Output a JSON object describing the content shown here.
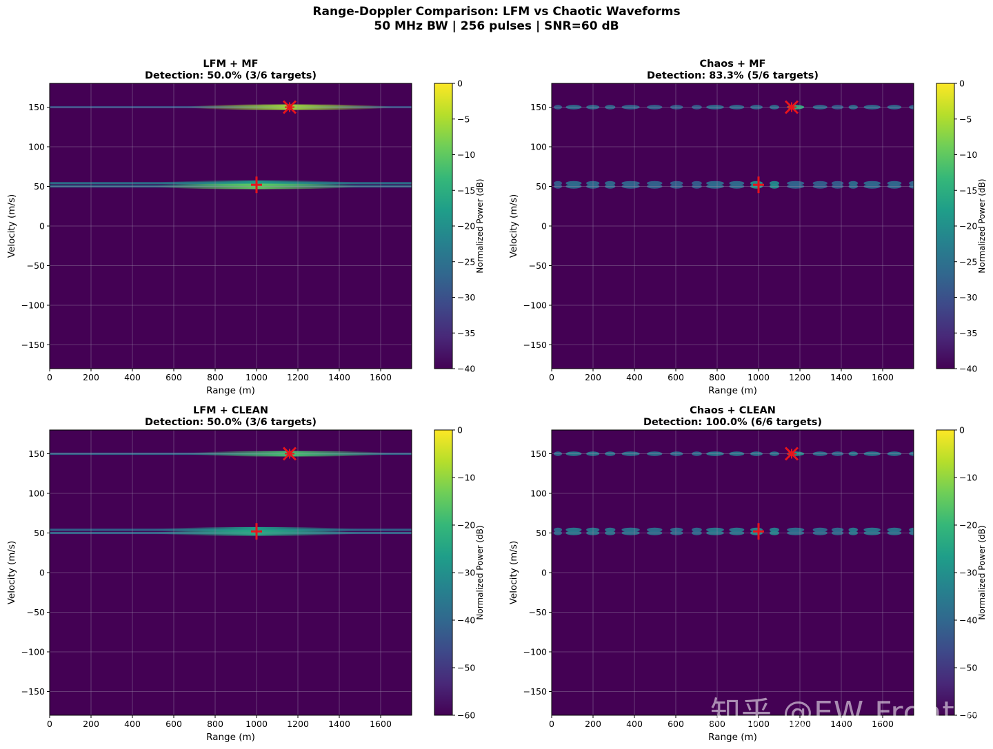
{
  "figure": {
    "title_line1": "Range-Doppler Comparison: LFM vs Chaotic Waveforms",
    "title_line2": "50 MHz BW | 256 pulses | SNR=60 dB"
  },
  "watermark": "知乎 @EW Frontier",
  "colors": {
    "viridis": [
      "#440154",
      "#482878",
      "#3e4989",
      "#31688e",
      "#26828e",
      "#1f9e89",
      "#35b779",
      "#6ece58",
      "#b5de2b",
      "#fde725"
    ],
    "background": "#440154",
    "grid": "#9a8aa8",
    "marker": "#e8141c"
  },
  "chart_data": [
    {
      "type": "heatmap",
      "title": "LFM + MF",
      "subtitle": "Detection: 50.0% (3/6 targets)",
      "xlabel": "Range (m)",
      "ylabel": "Velocity (m/s)",
      "xlim": [
        0,
        1750
      ],
      "ylim": [
        -180,
        180
      ],
      "xticks": [
        0,
        200,
        400,
        600,
        800,
        1000,
        1200,
        1400,
        1600
      ],
      "yticks": [
        150,
        100,
        50,
        0,
        -50,
        -100,
        -150
      ],
      "colorbar": {
        "label": "Normalized Power (dB)",
        "range": [
          -40,
          0
        ],
        "ticks": [
          0,
          -5,
          -10,
          -15,
          -20,
          -25,
          -30,
          -35,
          -40
        ]
      },
      "grid": true,
      "waveform": "lfm",
      "ridges": [
        {
          "velocity": 150,
          "peak_range": 1160,
          "peak_level": 0.85,
          "floor_level": 0.25
        },
        {
          "velocity": 54,
          "peak_range": 1000,
          "peak_level": 0.55,
          "floor_level": 0.4
        },
        {
          "velocity": 50,
          "peak_range": 1000,
          "peak_level": 0.75,
          "floor_level": 0.4
        }
      ],
      "targets": [
        {
          "range": 1160,
          "velocity": 150,
          "marker": "x"
        },
        {
          "range": 1000,
          "velocity": 52,
          "marker": "+"
        }
      ]
    },
    {
      "type": "heatmap",
      "title": "Chaos + MF",
      "subtitle": "Detection: 83.3% (5/6 targets)",
      "xlabel": "Range (m)",
      "ylabel": "Velocity (m/s)",
      "xlim": [
        0,
        1750
      ],
      "ylim": [
        -180,
        180
      ],
      "xticks": [
        0,
        200,
        400,
        600,
        800,
        1000,
        1200,
        1400,
        1600
      ],
      "yticks": [
        150,
        100,
        50,
        0,
        -50,
        -100,
        -150
      ],
      "colorbar": {
        "label": "Normalized Power (dB)",
        "range": [
          -40,
          0
        ],
        "ticks": [
          0,
          -5,
          -10,
          -15,
          -20,
          -25,
          -30,
          -35,
          -40
        ]
      },
      "grid": true,
      "waveform": "chaos",
      "ridges": [
        {
          "velocity": 150,
          "peak_range": 1160,
          "peak_level": 0.65,
          "floor_level": 0.3
        },
        {
          "velocity": 54,
          "peak_range": 1000,
          "peak_level": 0.55,
          "floor_level": 0.3
        },
        {
          "velocity": 50,
          "peak_range": 1000,
          "peak_level": 0.6,
          "floor_level": 0.3
        }
      ],
      "targets": [
        {
          "range": 1160,
          "velocity": 150,
          "marker": "x"
        },
        {
          "range": 1000,
          "velocity": 52,
          "marker": "+"
        }
      ]
    },
    {
      "type": "heatmap",
      "title": "LFM + CLEAN",
      "subtitle": "Detection: 50.0% (3/6 targets)",
      "xlabel": "Range (m)",
      "ylabel": "Velocity (m/s)",
      "xlim": [
        0,
        1750
      ],
      "ylim": [
        -180,
        180
      ],
      "xticks": [
        0,
        200,
        400,
        600,
        800,
        1000,
        1200,
        1400,
        1600
      ],
      "yticks": [
        150,
        100,
        50,
        0,
        -50,
        -100,
        -150
      ],
      "colorbar": {
        "label": "Normalized Power (dB)",
        "range": [
          -60,
          0
        ],
        "ticks": [
          0,
          -10,
          -20,
          -30,
          -40,
          -50,
          -60
        ]
      },
      "grid": true,
      "waveform": "lfm",
      "ridges": [
        {
          "velocity": 150,
          "peak_range": 1160,
          "peak_level": 0.7,
          "floor_level": 0.35
        },
        {
          "velocity": 54,
          "peak_range": 1000,
          "peak_level": 0.55,
          "floor_level": 0.35
        },
        {
          "velocity": 50,
          "peak_range": 1000,
          "peak_level": 0.6,
          "floor_level": 0.35
        }
      ],
      "targets": [
        {
          "range": 1160,
          "velocity": 150,
          "marker": "x"
        },
        {
          "range": 1000,
          "velocity": 52,
          "marker": "+"
        }
      ]
    },
    {
      "type": "heatmap",
      "title": "Chaos + CLEAN",
      "subtitle": "Detection: 100.0% (6/6 targets)",
      "xlabel": "Range (m)",
      "ylabel": "Velocity (m/s)",
      "xlim": [
        0,
        1750
      ],
      "ylim": [
        -180,
        180
      ],
      "xticks": [
        0,
        200,
        400,
        600,
        800,
        1000,
        1200,
        1400,
        1600
      ],
      "yticks": [
        150,
        100,
        50,
        0,
        -50,
        -100,
        -150
      ],
      "colorbar": {
        "label": "Normalized Power (dB)",
        "range": [
          -60,
          0
        ],
        "ticks": [
          0,
          -10,
          -20,
          -30,
          -40,
          -50,
          -60
        ]
      },
      "grid": true,
      "waveform": "chaos",
      "ridges": [
        {
          "velocity": 150,
          "peak_range": 1160,
          "peak_level": 0.5,
          "floor_level": 0.35
        },
        {
          "velocity": 54,
          "peak_range": 1000,
          "peak_level": 0.45,
          "floor_level": 0.35
        },
        {
          "velocity": 50,
          "peak_range": 1000,
          "peak_level": 0.5,
          "floor_level": 0.35
        }
      ],
      "targets": [
        {
          "range": 1160,
          "velocity": 150,
          "marker": "x"
        },
        {
          "range": 1000,
          "velocity": 52,
          "marker": "+"
        }
      ]
    }
  ]
}
